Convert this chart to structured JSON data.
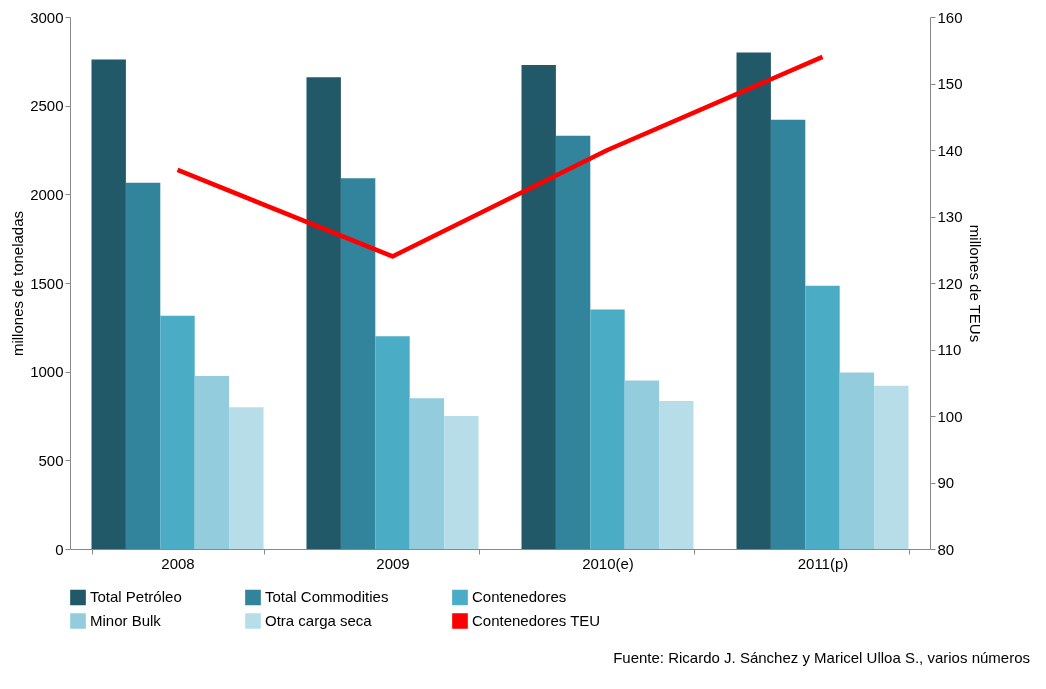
{
  "chart_data": {
    "type": "bar",
    "ylabel": "millones de toneladas",
    "y2label": "millones de TEUs",
    "categories": [
      "2008",
      "2009",
      "2010(e)",
      "2011(p)"
    ],
    "series": [
      {
        "name": "Total Petróleo",
        "color": "#215968",
        "values": [
          2760,
          2660,
          2730,
          2800
        ]
      },
      {
        "name": "Total Commodities",
        "color": "#31849b",
        "values": [
          2065,
          2090,
          2330,
          2420
        ]
      },
      {
        "name": "Contenedores",
        "color": "#4bacc6",
        "values": [
          1315,
          1200,
          1350,
          1485
        ]
      },
      {
        "name": "Minor Bulk",
        "color": "#93cddd",
        "values": [
          975,
          850,
          950,
          995
        ]
      },
      {
        "name": "Otra carga seca",
        "color": "#b7dee8",
        "values": [
          800,
          750,
          835,
          920
        ]
      },
      {
        "name": "Contenedores TEU",
        "color": "#ff0000",
        "type": "line",
        "axis": "y2",
        "values": [
          137,
          124,
          140,
          154
        ]
      }
    ],
    "ylim": [
      0,
      3000
    ],
    "yticks": [
      0,
      500,
      1000,
      1500,
      2000,
      2500,
      3000
    ],
    "y2lim": [
      80,
      160
    ],
    "y2ticks": [
      80,
      90,
      100,
      110,
      120,
      130,
      140,
      150,
      160
    ],
    "grid": false,
    "legend": "bottom",
    "annotations": [
      "Fuente: Ricardo J. Sánchez y Maricel Ulloa S., varios números"
    ]
  }
}
